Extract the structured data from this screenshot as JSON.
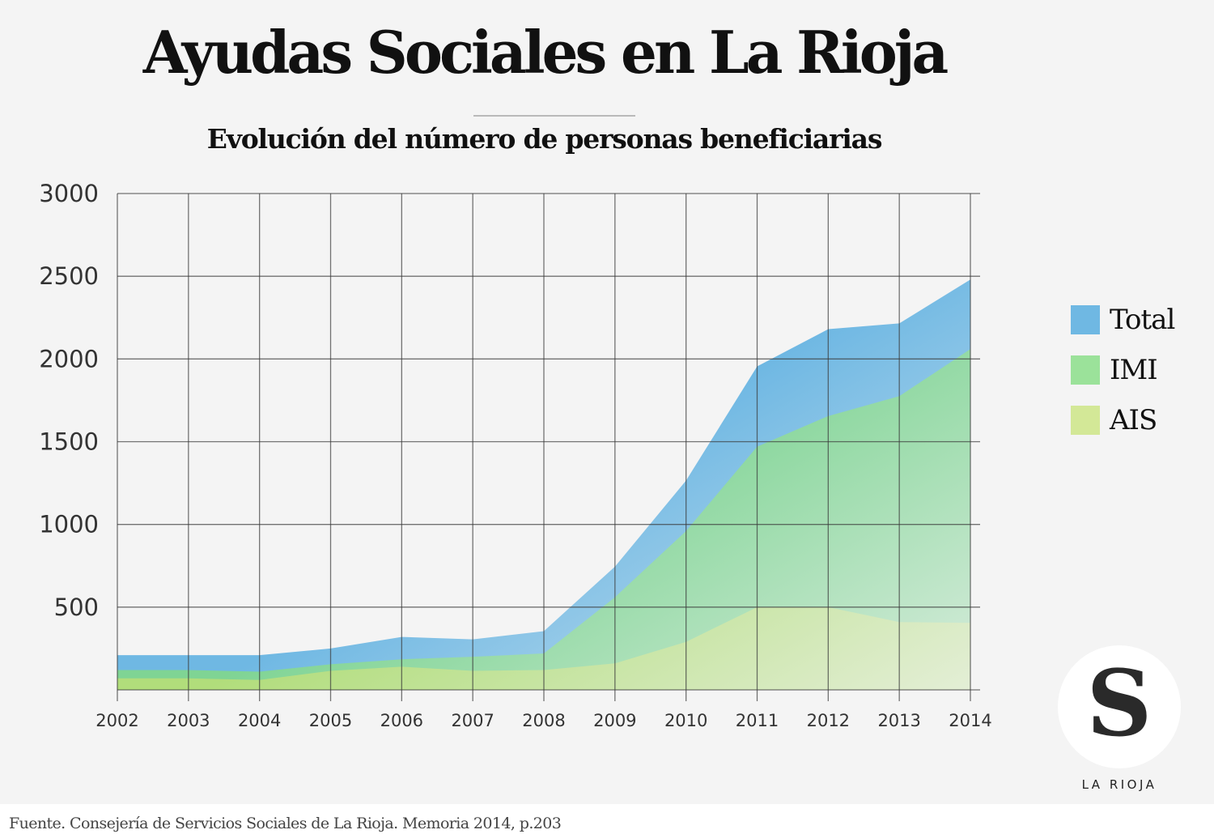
{
  "header": {
    "title": "Ayudas Sociales en La Rioja",
    "subtitle": "Evolución del número de personas beneficiarias"
  },
  "legend": {
    "items": [
      {
        "label": "Total",
        "color": "#6fb8e3"
      },
      {
        "label": "IMI",
        "color": "#9be29a"
      },
      {
        "label": "AIS",
        "color": "#d3e897"
      }
    ]
  },
  "logo": {
    "letter": "S",
    "name": "LA RIOJA"
  },
  "source": "Fuente. Consejería de Servicios Sociales de La Rioja. Memoria 2014, p.203",
  "chart_data": {
    "type": "area",
    "title": "Evolución del número de personas beneficiarias",
    "xlabel": "",
    "ylabel": "",
    "x": [
      2002,
      2003,
      2004,
      2005,
      2006,
      2007,
      2008,
      2009,
      2010,
      2011,
      2012,
      2013,
      2014
    ],
    "x_tick_labels": [
      "2002",
      "2003",
      "2004",
      "2005",
      "2006",
      "2007",
      "2008",
      "2009",
      "2010",
      "2011",
      "2012",
      "2013",
      "2014"
    ],
    "ylim": [
      0,
      3000
    ],
    "y_ticks": [
      500,
      1000,
      1500,
      2000,
      2500,
      3000
    ],
    "y_tick_labels": [
      "500",
      "1000",
      "1500",
      "2000",
      "2500",
      "3000"
    ],
    "grid": true,
    "legend_position": "right",
    "series": [
      {
        "name": "Total",
        "color": "#6fb8e3",
        "values": [
          210,
          210,
          210,
          250,
          320,
          305,
          355,
          745,
          1265,
          1955,
          2180,
          2215,
          2480
        ]
      },
      {
        "name": "IMI",
        "color": "#7fd494",
        "values": [
          120,
          120,
          110,
          155,
          185,
          200,
          220,
          560,
          960,
          1470,
          1655,
          1775,
          2060
        ]
      },
      {
        "name": "AIS",
        "color": "#b1dd7b",
        "values": [
          70,
          70,
          60,
          115,
          140,
          115,
          120,
          160,
          290,
          500,
          500,
          410,
          405
        ]
      }
    ]
  }
}
